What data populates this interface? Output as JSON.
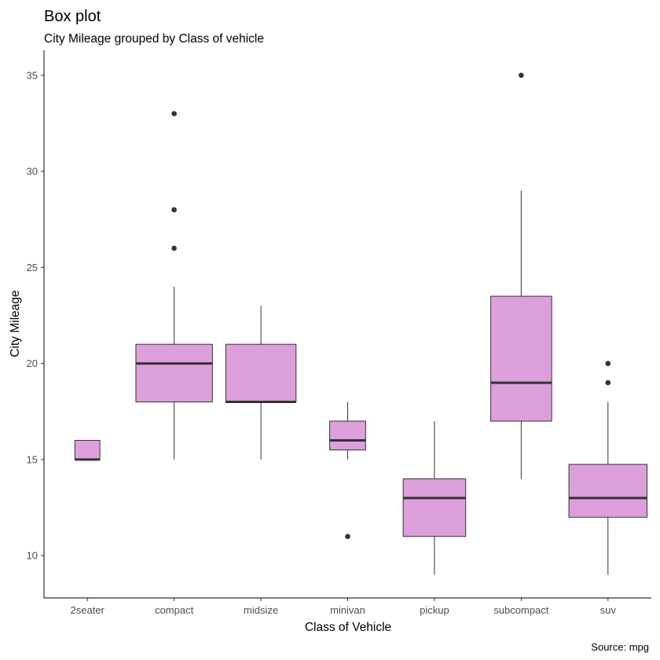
{
  "chart_data": {
    "type": "box",
    "title": "Box plot",
    "subtitle": "City Mileage grouped by Class of vehicle",
    "xlabel": "Class of Vehicle",
    "ylabel": "City Mileage",
    "caption": "Source: mpg",
    "ylim": [
      7.8,
      36.3
    ],
    "yticks": [
      10,
      15,
      20,
      25,
      30,
      35
    ],
    "grid": false,
    "box_fill": "#DDA0DD",
    "box_stroke": "#333333",
    "categories": [
      "2seater",
      "compact",
      "midsize",
      "minivan",
      "pickup",
      "subcompact",
      "suv"
    ],
    "boxes": [
      {
        "category": "2seater",
        "min": 15,
        "q1": 15,
        "median": 15,
        "q3": 16,
        "max": 16,
        "outliers": [],
        "width_frac": 0.32
      },
      {
        "category": "compact",
        "min": 15,
        "q1": 18,
        "median": 20,
        "q3": 21,
        "max": 24,
        "outliers": [
          26,
          28,
          33
        ],
        "width_frac": 0.98
      },
      {
        "category": "midsize",
        "min": 15,
        "q1": 18,
        "median": 18,
        "q3": 21,
        "max": 23,
        "outliers": [],
        "width_frac": 0.9
      },
      {
        "category": "minivan",
        "min": 15,
        "q1": 15.5,
        "median": 16,
        "q3": 17,
        "max": 18,
        "outliers": [
          11
        ],
        "width_frac": 0.46
      },
      {
        "category": "pickup",
        "min": 9,
        "q1": 11,
        "median": 13,
        "q3": 14,
        "max": 17,
        "outliers": [],
        "width_frac": 0.8
      },
      {
        "category": "subcompact",
        "min": 14,
        "q1": 17,
        "median": 19,
        "q3": 23.5,
        "max": 29,
        "outliers": [
          35
        ],
        "width_frac": 0.78
      },
      {
        "category": "suv",
        "min": 9,
        "q1": 12,
        "median": 13,
        "q3": 14.75,
        "max": 18,
        "outliers": [
          19,
          20
        ],
        "width_frac": 1.0
      }
    ]
  }
}
